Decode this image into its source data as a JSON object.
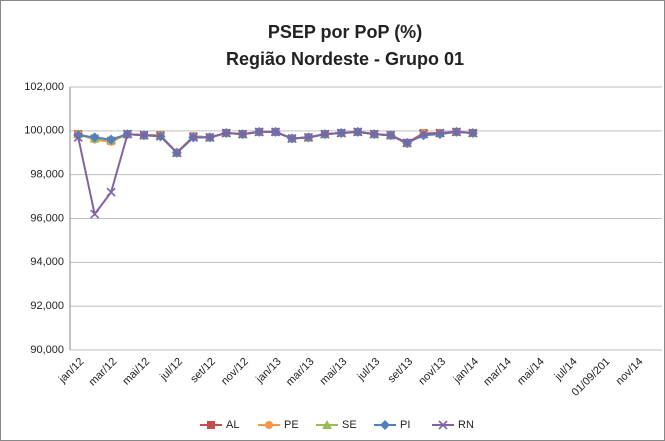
{
  "chart_data": {
    "type": "line",
    "title": "PSEP por PoP (%)",
    "subtitle": "Região Nordeste - Grupo 01",
    "categories": [
      "jan/12",
      null,
      "mar/12",
      null,
      "mai/12",
      null,
      "jul/12",
      null,
      "set/12",
      null,
      "nov/12",
      null,
      "jan/13",
      null,
      "mar/13",
      null,
      "mai/13",
      null,
      "jul/13",
      null,
      "set/13",
      null,
      "nov/13",
      null,
      "jan/14",
      null,
      "mar/14",
      null,
      "mai/14",
      null,
      "jul/14",
      null,
      "01/09/201",
      null,
      "nov/14",
      null
    ],
    "series": [
      {
        "name": "AL",
        "color": "#c0504d",
        "marker": "square",
        "values": [
          99.85,
          99.65,
          99.55,
          99.85,
          99.8,
          99.8,
          99.0,
          99.75,
          99.7,
          99.9,
          99.85,
          99.95,
          99.95,
          99.65,
          99.7,
          99.85,
          99.9,
          99.95,
          99.85,
          99.8,
          99.45,
          99.9,
          99.9,
          99.95,
          99.9,
          null,
          null,
          null,
          null,
          null,
          null,
          null,
          null,
          null,
          null,
          null
        ]
      },
      {
        "name": "PE",
        "color": "#f79646",
        "marker": "circle",
        "values": [
          99.85,
          99.6,
          99.5,
          99.85,
          99.8,
          99.8,
          99.0,
          99.75,
          99.7,
          99.9,
          99.85,
          99.95,
          99.95,
          99.65,
          99.7,
          99.85,
          99.9,
          99.95,
          99.85,
          99.8,
          99.4,
          99.9,
          99.9,
          99.95,
          99.9,
          null,
          null,
          null,
          null,
          null,
          null,
          null,
          null,
          null,
          null,
          null
        ]
      },
      {
        "name": "SE",
        "color": "#9bbb59",
        "marker": "triangle",
        "values": [
          99.85,
          99.65,
          99.6,
          99.85,
          99.8,
          99.8,
          99.0,
          99.75,
          99.7,
          99.9,
          99.85,
          99.95,
          99.95,
          99.65,
          99.7,
          99.85,
          99.9,
          99.95,
          99.85,
          99.8,
          99.45,
          99.85,
          99.9,
          99.95,
          99.9,
          null,
          null,
          null,
          null,
          null,
          null,
          null,
          null,
          null,
          null,
          null
        ]
      },
      {
        "name": "PI",
        "color": "#4f81bd",
        "marker": "diamond",
        "values": [
          99.8,
          99.7,
          99.6,
          99.85,
          99.8,
          99.75,
          99.0,
          99.7,
          99.7,
          99.9,
          99.85,
          99.95,
          99.95,
          99.65,
          99.7,
          99.85,
          99.9,
          99.95,
          99.85,
          99.8,
          99.45,
          99.8,
          99.85,
          99.95,
          99.9,
          null,
          null,
          null,
          null,
          null,
          null,
          null,
          null,
          null,
          null,
          null
        ]
      },
      {
        "name": "RN",
        "color": "#8064a2",
        "marker": "x",
        "values": [
          99.7,
          96.2,
          97.2,
          99.85,
          99.8,
          99.75,
          99.0,
          99.7,
          99.7,
          99.9,
          99.85,
          99.95,
          99.95,
          99.65,
          99.7,
          99.85,
          99.9,
          99.95,
          99.85,
          99.8,
          99.45,
          99.85,
          99.9,
          99.95,
          99.9,
          null,
          null,
          null,
          null,
          null,
          null,
          null,
          null,
          null,
          null,
          null
        ]
      }
    ],
    "ylim": [
      90,
      102
    ],
    "yticks": [
      {
        "value": 90,
        "label": "90,000"
      },
      {
        "value": 92,
        "label": "92,000"
      },
      {
        "value": 94,
        "label": "94,000"
      },
      {
        "value": 96,
        "label": "96,000"
      },
      {
        "value": 98,
        "label": "98,000"
      },
      {
        "value": 100,
        "label": "100,000"
      },
      {
        "value": 102,
        "label": "102,000"
      }
    ],
    "grid": true,
    "legend": "bottom"
  }
}
